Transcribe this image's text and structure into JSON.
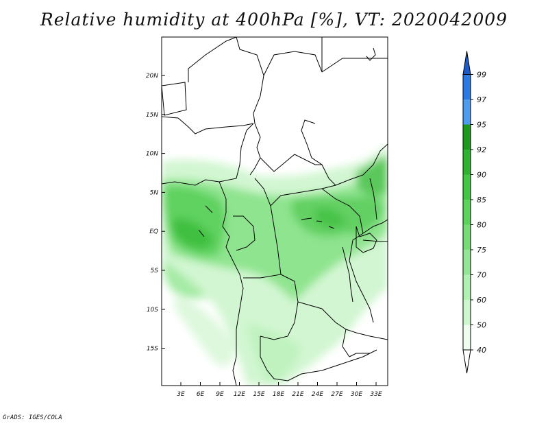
{
  "title": "Relative humidity at 400hPa [%], VT: 2020042009",
  "credit": "GrADS: IGES/COLA",
  "map": {
    "lat_ticks": [
      "20N",
      "15N",
      "10N",
      "5N",
      "EQ",
      "5S",
      "10S",
      "15S"
    ],
    "lon_ticks": [
      "3E",
      "6E",
      "9E",
      "12E",
      "15E",
      "18E",
      "21E",
      "24E",
      "27E",
      "30E",
      "33E"
    ]
  },
  "colorbar": {
    "labels": [
      "40",
      "50",
      "60",
      "70",
      "75",
      "80",
      "85",
      "90",
      "92",
      "95",
      "97",
      "99"
    ],
    "colors": [
      "#eefdee",
      "#ccf7cc",
      "#b0f0b0",
      "#93e693",
      "#76dd76",
      "#5ad45a",
      "#42c742",
      "#2eb32e",
      "#1c9a1c",
      "#4c9cf0",
      "#2a7ae6",
      "#1c5ac8"
    ]
  },
  "colors": {
    "frame": "#000000",
    "border": "#000000"
  }
}
